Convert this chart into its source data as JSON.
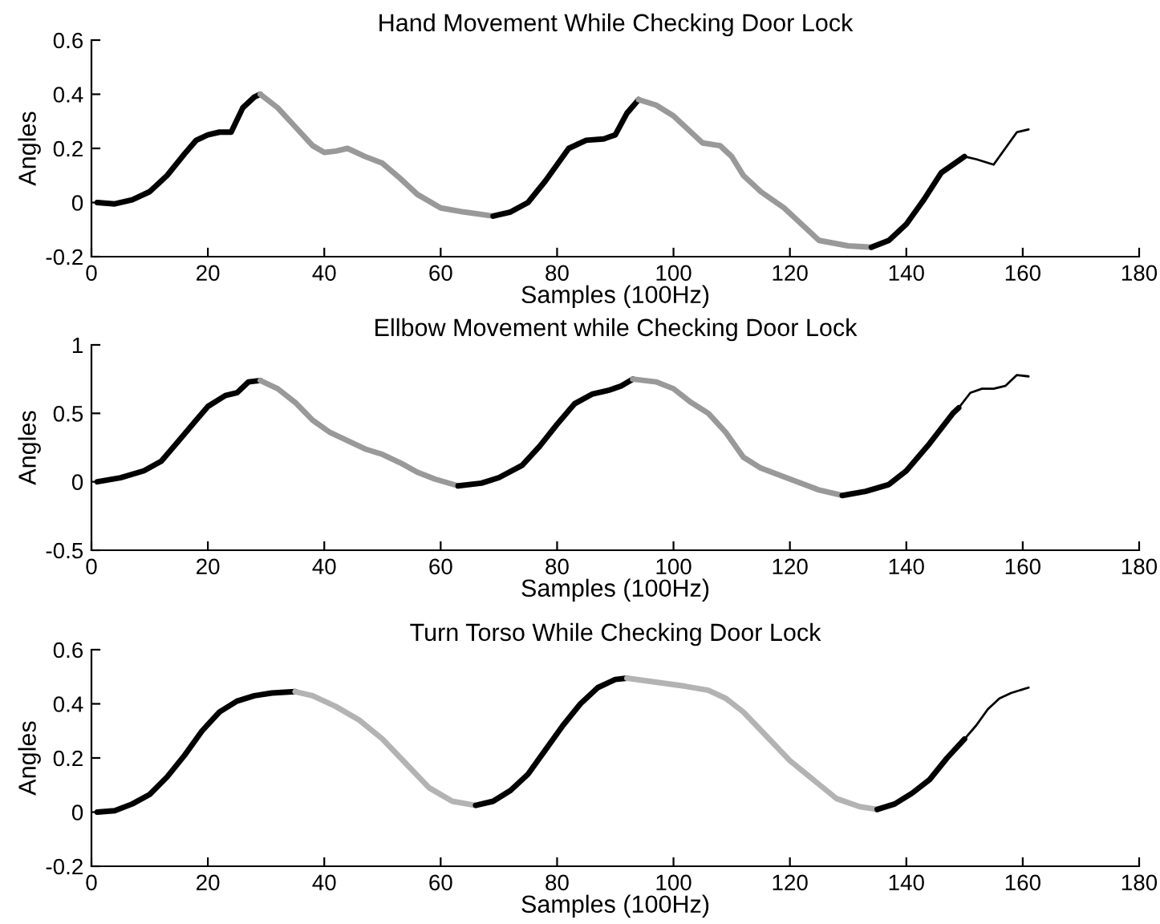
{
  "chart_data": [
    {
      "type": "line",
      "title": "Hand Movement While Checking Door Lock",
      "xlabel": "Samples (100Hz)",
      "ylabel": "Angles",
      "xlim": [
        0,
        180
      ],
      "xticks": [
        0,
        20,
        40,
        60,
        80,
        100,
        120,
        140,
        160,
        180
      ],
      "ylim": [
        -0.2,
        0.6
      ],
      "yticks": [
        -0.2,
        0,
        0.2,
        0.4,
        0.6
      ],
      "grid": false,
      "marker": "none",
      "line_style": "solid",
      "series": [
        {
          "color": "#000000",
          "x": [
            1,
            4,
            7,
            10,
            13,
            16,
            18,
            20,
            22,
            24,
            26,
            28,
            29
          ],
          "values": [
            0,
            -0.005,
            0.01,
            0.04,
            0.1,
            0.18,
            0.23,
            0.25,
            0.26,
            0.26,
            0.35,
            0.39,
            0.4
          ]
        },
        {
          "color": "#999999",
          "x": [
            29,
            32,
            35,
            38,
            40,
            42,
            44,
            47,
            50,
            53,
            56,
            60,
            64,
            69
          ],
          "values": [
            0.4,
            0.35,
            0.28,
            0.21,
            0.185,
            0.19,
            0.2,
            0.17,
            0.145,
            0.09,
            0.03,
            -0.02,
            -0.035,
            -0.05
          ]
        },
        {
          "color": "#000000",
          "x": [
            69,
            72,
            75,
            78,
            82,
            85,
            88,
            90,
            92,
            94
          ],
          "values": [
            -0.05,
            -0.035,
            0,
            0.08,
            0.2,
            0.23,
            0.235,
            0.25,
            0.33,
            0.38
          ]
        },
        {
          "color": "#999999",
          "x": [
            94,
            97,
            100,
            103,
            105,
            108,
            110,
            112,
            115,
            119,
            122,
            125,
            130,
            134
          ],
          "values": [
            0.38,
            0.36,
            0.32,
            0.26,
            0.22,
            0.21,
            0.17,
            0.1,
            0.04,
            -0.02,
            -0.08,
            -0.14,
            -0.16,
            -0.165
          ]
        },
        {
          "color": "#000000",
          "x": [
            134,
            137,
            140,
            143,
            146,
            150
          ],
          "values": [
            -0.165,
            -0.14,
            -0.08,
            0.01,
            0.11,
            0.17
          ]
        },
        {
          "color": "#000000",
          "x": [
            150,
            152,
            155,
            157,
            159,
            161
          ],
          "values": [
            0.17,
            0.16,
            0.14,
            0.2,
            0.26,
            0.27
          ]
        }
      ]
    },
    {
      "type": "line",
      "title": "Ellbow Movement while Checking Door Lock",
      "xlabel": "Samples (100Hz)",
      "ylabel": "Angles",
      "xlim": [
        0,
        180
      ],
      "xticks": [
        0,
        20,
        40,
        60,
        80,
        100,
        120,
        140,
        160,
        180
      ],
      "ylim": [
        -0.5,
        1
      ],
      "yticks": [
        -0.5,
        0,
        0.5,
        1
      ],
      "grid": false,
      "marker": "none",
      "line_style": "solid",
      "series": [
        {
          "color": "#000000",
          "x": [
            1,
            5,
            9,
            12,
            15,
            18,
            20,
            23,
            25,
            27,
            29
          ],
          "values": [
            0,
            0.03,
            0.08,
            0.15,
            0.3,
            0.45,
            0.55,
            0.63,
            0.65,
            0.73,
            0.74
          ]
        },
        {
          "color": "#999999",
          "x": [
            29,
            32,
            35,
            38,
            41,
            44,
            47,
            50,
            53,
            56,
            59,
            63
          ],
          "values": [
            0.74,
            0.68,
            0.58,
            0.45,
            0.36,
            0.3,
            0.24,
            0.2,
            0.14,
            0.07,
            0.02,
            -0.03
          ]
        },
        {
          "color": "#000000",
          "x": [
            63,
            67,
            70,
            74,
            77,
            80,
            83,
            86,
            89,
            91,
            93
          ],
          "values": [
            -0.03,
            -0.01,
            0.03,
            0.12,
            0.26,
            0.42,
            0.57,
            0.64,
            0.67,
            0.7,
            0.75
          ]
        },
        {
          "color": "#999999",
          "x": [
            93,
            97,
            100,
            103,
            106,
            109,
            112,
            115,
            120,
            125,
            129
          ],
          "values": [
            0.75,
            0.73,
            0.68,
            0.58,
            0.5,
            0.36,
            0.18,
            0.1,
            0.02,
            -0.06,
            -0.1
          ]
        },
        {
          "color": "#000000",
          "x": [
            129,
            133,
            137,
            140,
            144,
            148,
            149
          ],
          "values": [
            -0.1,
            -0.07,
            -0.02,
            0.08,
            0.28,
            0.5,
            0.54
          ]
        },
        {
          "color": "#000000",
          "x": [
            149,
            151,
            153,
            155,
            157,
            159,
            161
          ],
          "values": [
            0.54,
            0.65,
            0.68,
            0.68,
            0.7,
            0.78,
            0.77
          ]
        }
      ]
    },
    {
      "type": "line",
      "title": "Turn Torso While Checking Door Lock",
      "xlabel": "Samples (100Hz)",
      "ylabel": "Angles",
      "xlim": [
        0,
        180
      ],
      "xticks": [
        0,
        20,
        40,
        60,
        80,
        100,
        120,
        140,
        160,
        180
      ],
      "ylim": [
        -0.2,
        0.6
      ],
      "yticks": [
        -0.2,
        0,
        0.2,
        0.4,
        0.6
      ],
      "grid": false,
      "marker": "none",
      "line_style": "solid",
      "series": [
        {
          "color": "#000000",
          "x": [
            1,
            4,
            7,
            10,
            13,
            16,
            19,
            22,
            25,
            28,
            31,
            35
          ],
          "values": [
            0,
            0.005,
            0.03,
            0.065,
            0.13,
            0.21,
            0.3,
            0.37,
            0.41,
            0.43,
            0.44,
            0.445
          ]
        },
        {
          "color": "#b3b3b3",
          "x": [
            35,
            38,
            42,
            46,
            50,
            54,
            58,
            62,
            66
          ],
          "values": [
            0.445,
            0.43,
            0.39,
            0.34,
            0.27,
            0.18,
            0.09,
            0.04,
            0.025
          ]
        },
        {
          "color": "#000000",
          "x": [
            66,
            69,
            72,
            75,
            78,
            81,
            84,
            87,
            90,
            92
          ],
          "values": [
            0.025,
            0.04,
            0.08,
            0.14,
            0.23,
            0.32,
            0.4,
            0.46,
            0.49,
            0.495
          ]
        },
        {
          "color": "#b3b3b3",
          "x": [
            92,
            97,
            102,
            106,
            109,
            112,
            116,
            120,
            124,
            128,
            132,
            135
          ],
          "values": [
            0.495,
            0.48,
            0.465,
            0.45,
            0.42,
            0.37,
            0.28,
            0.19,
            0.12,
            0.05,
            0.02,
            0.01
          ]
        },
        {
          "color": "#000000",
          "x": [
            135,
            138,
            141,
            144,
            147,
            150
          ],
          "values": [
            0.01,
            0.03,
            0.07,
            0.12,
            0.2,
            0.27
          ]
        },
        {
          "color": "#000000",
          "x": [
            150,
            152,
            154,
            156,
            158,
            161
          ],
          "values": [
            0.27,
            0.32,
            0.38,
            0.42,
            0.44,
            0.46
          ]
        }
      ]
    }
  ]
}
